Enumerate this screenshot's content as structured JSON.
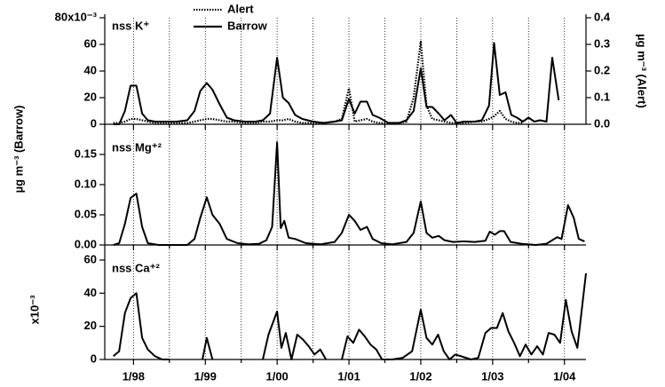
{
  "chart_data": [
    {
      "type": "line",
      "label": "nss K⁺",
      "y2label": "µg m⁻³ (Alert)",
      "legend": "top-left",
      "xlim": [
        1997.6,
        2004.3
      ],
      "ylim": [
        0,
        80
      ],
      "yticks": [
        0,
        20,
        40,
        60,
        {
          "value": 80,
          "label": "80x10⁻³"
        }
      ],
      "y2lim": [
        0,
        0.4
      ],
      "y2ticks": [
        {
          "value": 0,
          "label": "0.0"
        },
        0.1,
        0.2,
        0.3,
        0.4
      ],
      "x": [
        1997.72,
        1997.8,
        1997.88,
        1997.96,
        1998.04,
        1998.12,
        1998.2,
        1998.3,
        1998.45,
        1998.6,
        1998.75,
        1998.85,
        1998.93,
        1999.02,
        1999.1,
        1999.2,
        1999.3,
        1999.4,
        1999.55,
        1999.7,
        1999.8,
        1999.9,
        2000.0,
        2000.08,
        2000.16,
        2000.25,
        2000.35,
        2000.5,
        2000.65,
        2000.8,
        2000.9,
        2001.0,
        2001.08,
        2001.16,
        2001.25,
        2001.33,
        2001.42,
        2001.55,
        2001.7,
        2001.8,
        2001.9,
        2002.0,
        2002.08,
        2002.16,
        2002.25,
        2002.33,
        2002.42,
        2002.5,
        2002.6,
        2002.75,
        2002.85,
        2002.95,
        2003.02,
        2003.1,
        2003.18,
        2003.26,
        2003.34,
        2003.42,
        2003.5,
        2003.58,
        2003.66,
        2003.75,
        2003.83,
        2003.92
      ],
      "series": [
        {
          "name": "Alert",
          "color": "#000000",
          "dash": "dotted",
          "axis": "y2",
          "values": [
            0.005,
            0.005,
            0.01,
            0.02,
            0.02,
            0.015,
            0.01,
            0.005,
            0.005,
            0.005,
            0.005,
            0.01,
            0.015,
            0.02,
            0.02,
            0.015,
            0.01,
            0.01,
            0.005,
            0.005,
            0.01,
            0.01,
            0.015,
            0.015,
            0.02,
            0.01,
            0.005,
            0.005,
            0.005,
            0.01,
            0.02,
            0.135,
            0.01,
            0.015,
            0.02,
            0.01,
            0.005,
            0.005,
            0.005,
            0.01,
            0.1,
            0.31,
            0.07,
            0.02,
            0.015,
            0.01,
            0.005,
            0.005,
            0.005,
            0.01,
            0.01,
            0.02,
            0.03,
            0.05,
            0.02,
            0.01,
            0.005,
            0.005,
            null,
            null,
            null,
            null,
            null,
            null
          ]
        },
        {
          "name": "Barrow",
          "color": "#000000",
          "dash": "solid",
          "values": [
            0,
            0,
            10,
            29,
            29,
            8,
            3,
            2,
            2,
            2,
            3,
            10,
            25,
            31,
            26,
            15,
            5,
            3,
            2,
            2,
            3,
            8,
            50,
            20,
            16,
            7,
            4,
            2,
            1,
            2,
            3,
            19,
            8,
            17,
            17,
            7,
            5,
            1,
            1,
            3,
            10,
            42,
            13,
            13,
            8,
            3,
            7,
            1,
            2,
            2,
            3,
            14,
            61,
            22,
            24,
            7,
            5,
            2,
            5,
            2,
            3,
            2,
            50,
            18
          ]
        }
      ]
    },
    {
      "type": "line",
      "label": "nss Mg⁺²",
      "ylabel": "µg m⁻³ (Barrow)",
      "xlim": [
        1997.6,
        2004.3
      ],
      "ylim": [
        0,
        0.175
      ],
      "yticks": [
        {
          "value": 0,
          "label": "0.00"
        },
        0.05,
        {
          "value": 0.1,
          "label": "0.10"
        },
        0.15
      ],
      "x": [
        1997.72,
        1997.8,
        1997.88,
        1997.96,
        1998.04,
        1998.12,
        1998.2,
        1998.35,
        1998.6,
        1998.75,
        1998.85,
        1998.93,
        1999.02,
        1999.1,
        1999.2,
        1999.3,
        1999.45,
        1999.6,
        1999.75,
        1999.85,
        1999.93,
        2000.0,
        2000.05,
        2000.1,
        2000.16,
        2000.25,
        2000.4,
        2000.6,
        2000.8,
        2000.9,
        2001.0,
        2001.08,
        2001.16,
        2001.25,
        2001.33,
        2001.45,
        2001.6,
        2001.8,
        2001.9,
        2002.0,
        2002.08,
        2002.16,
        2002.25,
        2002.33,
        2002.45,
        2002.6,
        2002.75,
        2002.9,
        2002.96,
        2003.03,
        2003.1,
        2003.16,
        2003.25,
        2003.4,
        2003.6,
        2003.75,
        2003.9,
        2003.96,
        2004.05,
        2004.13,
        2004.2,
        2004.28
      ],
      "series": [
        {
          "name": "Barrow",
          "color": "#000000",
          "dash": "solid",
          "values": [
            0,
            0.003,
            0.035,
            0.078,
            0.085,
            0.03,
            0.003,
            0,
            0,
            0,
            0.01,
            0.045,
            0.079,
            0.05,
            0.035,
            0.01,
            0.003,
            0.001,
            0.002,
            0.008,
            0.03,
            0.17,
            0.028,
            0.04,
            0.012,
            0.01,
            0.003,
            0.001,
            0.005,
            0.02,
            0.05,
            0.04,
            0.025,
            0.03,
            0.01,
            0.003,
            0.001,
            0.005,
            0.02,
            0.072,
            0.02,
            0.012,
            0.015,
            0.008,
            0.005,
            0.006,
            0.005,
            0.007,
            0.022,
            0.017,
            0.023,
            0.023,
            0.005,
            0.002,
            0,
            0.002,
            0.013,
            0.01,
            0.066,
            0.045,
            0.01,
            0.006
          ]
        }
      ]
    },
    {
      "type": "line",
      "label": "nss Ca⁺²",
      "ylabel": "x10⁻³",
      "xlim": [
        1997.6,
        2004.3
      ],
      "ylim": [
        0,
        60
      ],
      "yticks": [
        0,
        20,
        40,
        60
      ],
      "xticks": [
        {
          "value": 1998,
          "label": "1/98"
        },
        {
          "value": 1999,
          "label": "1/99"
        },
        {
          "value": 2000,
          "label": "1/00"
        },
        {
          "value": 2001,
          "label": "1/01"
        },
        {
          "value": 2002,
          "label": "1/02"
        },
        {
          "value": 2003,
          "label": "1/03"
        },
        {
          "value": 2004,
          "label": "1/04"
        }
      ],
      "minor_xticks": [
        1998.5,
        1999.5,
        2000.5,
        2001.5,
        2002.5,
        2003.5
      ],
      "x": [
        1997.72,
        1997.8,
        1997.88,
        1997.96,
        1998.04,
        1998.12,
        1998.2,
        1998.3,
        1998.4,
        1998.5,
        1998.7,
        1998.96,
        1999.02,
        1999.1,
        1999.4,
        1999.8,
        1999.88,
        2000.0,
        2000.06,
        2000.12,
        2000.2,
        2000.28,
        2000.36,
        2000.44,
        2000.52,
        2000.6,
        2000.68,
        2000.8,
        2000.9,
        2000.98,
        2001.06,
        2001.14,
        2001.22,
        2001.3,
        2001.38,
        2001.46,
        2001.6,
        2001.75,
        2001.88,
        2002.0,
        2002.08,
        2002.16,
        2002.24,
        2002.32,
        2002.4,
        2002.48,
        2002.56,
        2002.7,
        2002.8,
        2002.9,
        2002.98,
        2003.06,
        2003.14,
        2003.22,
        2003.3,
        2003.38,
        2003.46,
        2003.54,
        2003.62,
        2003.7,
        2003.78,
        2003.86,
        2003.94,
        2004.02,
        2004.1,
        2004.18,
        2004.3
      ],
      "series": [
        {
          "name": "Barrow",
          "color": "#000000",
          "dash": "solid",
          "values": [
            2,
            5,
            28,
            37,
            40,
            13,
            6,
            2,
            0,
            0,
            null,
            0,
            13,
            0,
            null,
            0,
            15,
            29,
            7,
            16,
            0,
            15,
            12,
            8,
            3,
            6,
            0,
            null,
            0,
            14,
            10,
            18,
            14,
            9,
            6,
            0,
            0,
            1,
            5,
            30,
            13,
            9,
            15,
            5,
            0,
            3,
            2,
            0,
            1,
            16,
            19,
            19,
            28,
            17,
            10,
            2,
            9,
            3,
            8,
            3,
            16,
            15,
            10,
            36,
            17,
            7,
            52
          ]
        }
      ]
    }
  ]
}
